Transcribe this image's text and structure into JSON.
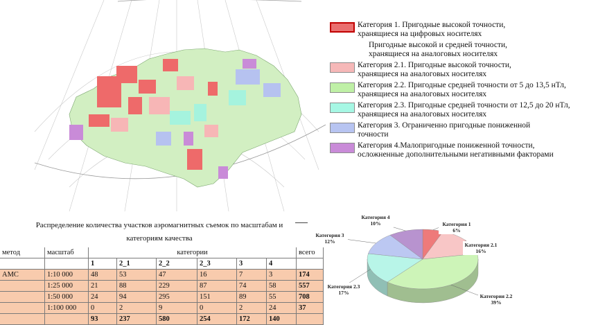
{
  "legend": [
    {
      "text": "Категория 1. Пригодные высокой точности,",
      "sub": "хранящиеся на цифровых носителях",
      "color": "#ea7070",
      "border": "#c00000"
    },
    {
      "text": "Пригодные высокой и средней точности,",
      "sub": "хранящиеся на аналоговых носителях",
      "plain": true
    },
    {
      "text": "Категория 2.1. Пригодные высокой точности,",
      "sub": "хранящиеся на аналоговых носителях",
      "color": "#f6b8b8"
    },
    {
      "text": "Категория 2.2. Пригодные средней точности от 5 до 13,5 нТл,",
      "sub": "хранящиеся на аналоговых носителях",
      "color": "#bff0a6"
    },
    {
      "text": "Категория 2.3. Пригодные средней точности  от 12,5 до 20 нТл,",
      "sub": "хранящиеся на аналоговых носителях",
      "color": "#a6f7e4"
    },
    {
      "text": "Категория 3. Ограниченно пригодные пониженной",
      "sub": "точности",
      "color": "#b7c4f1"
    },
    {
      "text": "Категория 4.Малопригодные пониженной точности,",
      "sub": "осложненные дополнительными негативными факторами",
      "color": "#c98bd8"
    }
  ],
  "table": {
    "title_line1": "Распределение количества участков аэромагнитных съемок по масштабам и",
    "title_line2": "категориям качества",
    "headers": {
      "method": "метод",
      "scale": "масштаб",
      "categories": "категории",
      "total": "всего"
    },
    "category_codes": [
      "1",
      "2_1",
      "2_2",
      "2_3",
      "3",
      "4"
    ],
    "method_name": "АМС",
    "rows": [
      {
        "scale": "1:10 000",
        "values": [
          "48",
          "53",
          "47",
          "16",
          "7",
          "3"
        ],
        "total": "174"
      },
      {
        "scale": "1:25 000",
        "values": [
          "21",
          "88",
          "229",
          "87",
          "74",
          "58"
        ],
        "total": "557"
      },
      {
        "scale": "1:50 000",
        "values": [
          "24",
          "94",
          "295",
          "151",
          "89",
          "55"
        ],
        "total": "708"
      },
      {
        "scale": "1:100 000",
        "values": [
          "0",
          "2",
          "9",
          "0",
          "2",
          "24"
        ],
        "total": "37"
      }
    ],
    "totals": [
      "93",
      "237",
      "580",
      "254",
      "172",
      "140"
    ]
  },
  "chart_data": {
    "type": "pie",
    "slices": [
      {
        "label": "Категория 1",
        "percent_label": "6%",
        "value": 6,
        "color": "#ee7a7a"
      },
      {
        "label": "Категория 2.1",
        "percent_label": "16%",
        "value": 16,
        "color": "#f8c6c6"
      },
      {
        "label": "Категория 2.2",
        "percent_label": "39%",
        "value": 39,
        "color": "#cdf4b8"
      },
      {
        "label": "Категория 2.3",
        "percent_label": "17%",
        "value": 17,
        "color": "#b8f5e8"
      },
      {
        "label": "Категория 3",
        "percent_label": "12%",
        "value": 12,
        "color": "#bcc8f2"
      },
      {
        "label": "Категория 4",
        "percent_label": "10%",
        "value": 10,
        "color": "#b893cf"
      }
    ]
  }
}
